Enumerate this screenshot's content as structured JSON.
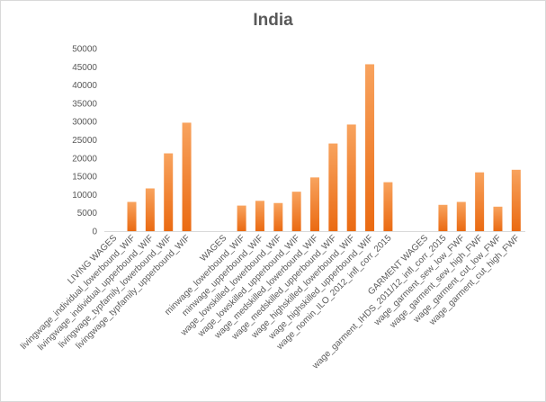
{
  "chart_data": {
    "type": "bar",
    "title": "India",
    "xlabel": "",
    "ylabel": "",
    "ylim": [
      0,
      50000
    ],
    "yticks": [
      0,
      5000,
      10000,
      15000,
      20000,
      25000,
      30000,
      35000,
      40000,
      45000,
      50000
    ],
    "grid": false,
    "legend": "none",
    "bar_color": "#f07f2c",
    "categories": [
      "LIVING WAGES",
      "livingwage_individual_lowerbound_WIF",
      "livingwage_individual_upperbound_WIF",
      "livingwage_typfamily_lowerbound_WIF",
      "livingwage_typfamily_upperbound_WIF",
      "",
      "WAGES",
      "minwage_lowerbound_WIF",
      "minwage_upperbound_WIF",
      "wage_lowskilled_lowerbound_WIF",
      "wage_lowskilled_upperbound_WIF",
      "wage_medskilled_lowerbound_WIF",
      "wage_medskilled_upperbound_WIF",
      "wage_highskilled_lowerbound_WIF",
      "wage_highskilled_upperbound_WIF",
      "wage_nomin_ILO_2012_infl_corr_2015",
      "",
      "GARMENT WAGES",
      "wage_garment_IHDS_2011/12_infl_corr_2015",
      "wage_garment_sew_low_FWF",
      "wage_garment_sew_high_FWF",
      "wage_garment_cut_low_FWF",
      "wage_garment_cut_high_FWF"
    ],
    "values": [
      0,
      8000,
      11700,
      21300,
      29700,
      0,
      0,
      7000,
      8300,
      7700,
      10800,
      14700,
      24000,
      29200,
      45700,
      13400,
      0,
      0,
      7200,
      8000,
      16100,
      6700,
      16800
    ]
  }
}
